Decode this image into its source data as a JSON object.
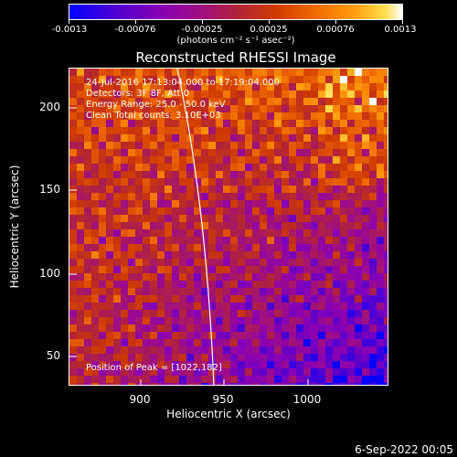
{
  "colorbar": {
    "ticks": [
      "-0.0013",
      "-0.00076",
      "-0.00025",
      "0.00025",
      "0.00076",
      "0.0013"
    ],
    "units_label": "(photons cm⁻² s⁻¹ asec⁻²)"
  },
  "plot": {
    "title": "Reconstructed RHESSI Image",
    "info": [
      "24-Jul-2016 17:13:04.000 to 17:19:04.000",
      "Detectors: 3F 8F, Att 0",
      "Energy Range: 25.0 - 50.0 keV",
      "Clean     Total counts: 3.10E+03"
    ],
    "peak_label": "Position of Peak = [1022,182]",
    "xlabel": "Heliocentric X (arcsec)",
    "ylabel": "Heliocentric Y (arcsec)",
    "xticks": [
      "900",
      "950",
      "1000"
    ],
    "yticks": [
      "200",
      "150",
      "100",
      "50"
    ]
  },
  "chart_data": {
    "type": "heatmap",
    "title": "Reconstructed RHESSI Image",
    "xlabel": "Heliocentric X (arcsec)",
    "ylabel": "Heliocentric Y (arcsec)",
    "xlim": [
      862,
      1048
    ],
    "ylim": [
      30,
      226
    ],
    "color_range": [
      -0.0013,
      0.0013
    ],
    "peak": [
      1022,
      182
    ]
  },
  "footer": {
    "timestamp": "6-Sep-2022 00:05"
  }
}
